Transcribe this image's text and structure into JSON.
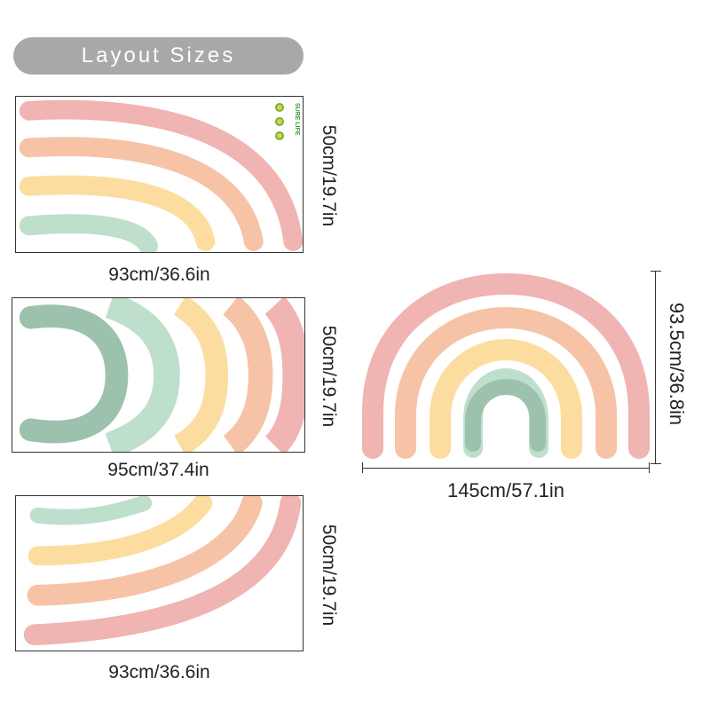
{
  "header": {
    "title": "Layout Sizes"
  },
  "sheets": [
    {
      "width_label": "93cm/36.6in",
      "height_label": "50cm/19.7in",
      "brand": "SURE LIFE"
    },
    {
      "width_label": "95cm/37.4in",
      "height_label": "50cm/19.7in"
    },
    {
      "width_label": "93cm/36.6in",
      "height_label": "50cm/19.7in"
    }
  ],
  "assembled": {
    "width_label": "145cm/57.1in",
    "height_label": "93.5cm/36.8in"
  },
  "colors": {
    "pink": "#f0b4b2",
    "peach": "#f6c3a6",
    "yellow": "#fcdd9f",
    "mint": "#bfdfcd",
    "sage": "#9cc2ae",
    "pill": "#a8a8a8"
  }
}
